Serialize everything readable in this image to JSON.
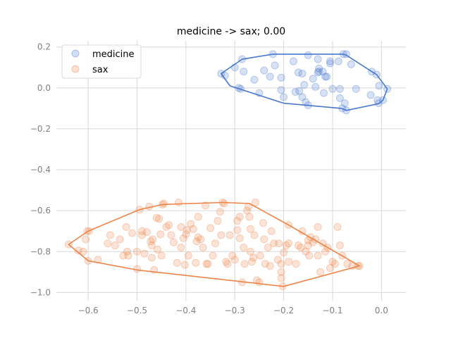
{
  "chart_data": {
    "type": "scatter",
    "title": "medicine -> sax; 0.00",
    "xlabel": "",
    "ylabel": "",
    "xlim": [
      -0.665,
      0.05
    ],
    "ylim": [
      -1.04,
      0.23
    ],
    "xticks": [
      -0.6,
      -0.5,
      -0.4,
      -0.3,
      -0.2,
      -0.1,
      0.0
    ],
    "xtick_labels": [
      "−0.6",
      "−0.5",
      "−0.4",
      "−0.3",
      "−0.2",
      "−0.1",
      "0.0"
    ],
    "yticks": [
      0.2,
      0.0,
      -0.2,
      -0.4,
      -0.6,
      -0.8,
      -1.0
    ],
    "ytick_labels": [
      "0.2",
      "0.0",
      "−0.2",
      "−0.4",
      "−0.6",
      "−0.8",
      "−1.0"
    ],
    "grid": true,
    "legend_position": "top-left",
    "series": [
      {
        "name": "medicine",
        "color": "#4878cf",
        "points": [
          [
            -0.328,
            0.07
          ],
          [
            -0.32,
            0.06
          ],
          [
            -0.3,
            0.1
          ],
          [
            -0.285,
            0.14
          ],
          [
            -0.282,
            0.08
          ],
          [
            -0.292,
            0.0
          ],
          [
            -0.288,
            -0.005
          ],
          [
            -0.26,
            0.04
          ],
          [
            -0.25,
            -0.025
          ],
          [
            -0.24,
            0.085
          ],
          [
            -0.222,
            0.165
          ],
          [
            -0.218,
            0.11
          ],
          [
            -0.228,
            0.055
          ],
          [
            -0.205,
            0.05
          ],
          [
            -0.205,
            -0.01
          ],
          [
            -0.2,
            -0.045
          ],
          [
            -0.18,
            0.13
          ],
          [
            -0.17,
            0.075
          ],
          [
            -0.162,
            0.07
          ],
          [
            -0.158,
            0.015
          ],
          [
            -0.168,
            -0.015
          ],
          [
            -0.162,
            -0.045
          ],
          [
            -0.155,
            -0.07
          ],
          [
            -0.15,
            0.16
          ],
          [
            -0.14,
            0.045
          ],
          [
            -0.135,
            0.005
          ],
          [
            -0.13,
            0.14
          ],
          [
            -0.128,
            0.095
          ],
          [
            -0.13,
            0.075
          ],
          [
            -0.128,
            0.08
          ],
          [
            -0.12,
            0.08
          ],
          [
            -0.115,
            0.055
          ],
          [
            -0.112,
            0.055
          ],
          [
            -0.118,
            -0.025
          ],
          [
            -0.105,
            0.12
          ],
          [
            -0.105,
            0.13
          ],
          [
            -0.1,
            -0.005
          ],
          [
            -0.088,
            0.13
          ],
          [
            -0.078,
            0.165
          ],
          [
            -0.072,
            0.165
          ],
          [
            -0.085,
            -0.05
          ],
          [
            -0.08,
            -0.1
          ],
          [
            -0.075,
            -0.075
          ],
          [
            -0.072,
            -0.11
          ],
          [
            -0.085,
            -0.005
          ],
          [
            -0.062,
            0.115
          ],
          [
            -0.052,
            -0.005
          ],
          [
            -0.022,
            -0.035
          ],
          [
            -0.02,
            0.08
          ],
          [
            -0.01,
            0.065
          ],
          [
            -0.005,
            0.01
          ],
          [
            -0.008,
            -0.06
          ],
          [
            -0.006,
            -0.075
          ],
          [
            0.003,
            -0.06
          ],
          [
            0.012,
            -0.005
          ],
          [
            -0.15,
            -0.085
          ],
          [
            -0.176,
            -0.02
          ]
        ],
        "hull": [
          [
            0.012,
            -0.005
          ],
          [
            0.003,
            -0.06
          ],
          [
            -0.005,
            -0.077
          ],
          [
            -0.072,
            -0.11
          ],
          [
            -0.082,
            -0.1
          ],
          [
            -0.2,
            -0.075
          ],
          [
            -0.31,
            0.01
          ],
          [
            -0.328,
            0.07
          ],
          [
            -0.285,
            0.14
          ],
          [
            -0.222,
            0.165
          ],
          [
            -0.078,
            0.165
          ],
          [
            -0.072,
            0.16
          ],
          [
            -0.02,
            0.08
          ],
          [
            -0.01,
            0.065
          ]
        ]
      },
      {
        "name": "sax",
        "color": "#ee854a",
        "points": [
          [
            -0.64,
            -0.765
          ],
          [
            -0.62,
            -0.795
          ],
          [
            -0.61,
            -0.8
          ],
          [
            -0.602,
            -0.7
          ],
          [
            -0.598,
            -0.7
          ],
          [
            -0.605,
            -0.74
          ],
          [
            -0.6,
            -0.845
          ],
          [
            -0.58,
            -0.84
          ],
          [
            -0.56,
            -0.76
          ],
          [
            -0.555,
            -0.72
          ],
          [
            -0.545,
            -0.77
          ],
          [
            -0.535,
            -0.74
          ],
          [
            -0.528,
            -0.82
          ],
          [
            -0.52,
            -0.8
          ],
          [
            -0.522,
            -0.68
          ],
          [
            -0.518,
            -0.82
          ],
          [
            -0.51,
            -0.71
          ],
          [
            -0.5,
            -0.8
          ],
          [
            -0.5,
            -0.885
          ],
          [
            -0.495,
            -0.595
          ],
          [
            -0.49,
            -0.7
          ],
          [
            -0.49,
            -0.72
          ],
          [
            -0.485,
            -0.81
          ],
          [
            -0.48,
            -0.705
          ],
          [
            -0.475,
            -0.58
          ],
          [
            -0.472,
            -0.75
          ],
          [
            -0.47,
            -0.77
          ],
          [
            -0.47,
            -0.83
          ],
          [
            -0.468,
            -0.74
          ],
          [
            -0.465,
            -0.89
          ],
          [
            -0.46,
            -0.635
          ],
          [
            -0.458,
            -0.79
          ],
          [
            -0.455,
            -0.64
          ],
          [
            -0.452,
            -0.715
          ],
          [
            -0.45,
            -0.82
          ],
          [
            -0.448,
            -0.57
          ],
          [
            -0.445,
            -0.565
          ],
          [
            -0.44,
            -0.68
          ],
          [
            -0.435,
            -0.67
          ],
          [
            -0.43,
            -0.72
          ],
          [
            -0.425,
            -0.755
          ],
          [
            -0.418,
            -0.855
          ],
          [
            -0.415,
            -0.56
          ],
          [
            -0.41,
            -0.68
          ],
          [
            -0.41,
            -0.78
          ],
          [
            -0.405,
            -0.735
          ],
          [
            -0.402,
            -0.865
          ],
          [
            -0.4,
            -0.715
          ],
          [
            -0.398,
            -0.695
          ],
          [
            -0.395,
            -0.82
          ],
          [
            -0.39,
            -0.665
          ],
          [
            -0.385,
            -0.69
          ],
          [
            -0.38,
            -0.855
          ],
          [
            -0.378,
            -0.75
          ],
          [
            -0.375,
            -0.63
          ],
          [
            -0.375,
            -0.73
          ],
          [
            -0.37,
            -0.74
          ],
          [
            -0.365,
            -0.78
          ],
          [
            -0.36,
            -0.575
          ],
          [
            -0.358,
            -0.86
          ],
          [
            -0.355,
            -0.86
          ],
          [
            -0.35,
            -0.685
          ],
          [
            -0.345,
            -0.82
          ],
          [
            -0.34,
            -0.76
          ],
          [
            -0.335,
            -0.65
          ],
          [
            -0.33,
            -0.605
          ],
          [
            -0.328,
            -0.72
          ],
          [
            -0.325,
            -0.56
          ],
          [
            -0.322,
            -0.565
          ],
          [
            -0.318,
            -0.85
          ],
          [
            -0.315,
            -0.86
          ],
          [
            -0.31,
            -0.72
          ],
          [
            -0.305,
            -0.82
          ],
          [
            -0.3,
            -0.84
          ],
          [
            -0.295,
            -0.65
          ],
          [
            -0.295,
            -0.695
          ],
          [
            -0.29,
            -0.63
          ],
          [
            -0.29,
            -0.735
          ],
          [
            -0.285,
            -0.95
          ],
          [
            -0.282,
            -0.78
          ],
          [
            -0.28,
            -0.86
          ],
          [
            -0.275,
            -0.6
          ],
          [
            -0.272,
            -0.58
          ],
          [
            -0.27,
            -0.63
          ],
          [
            -0.268,
            -0.69
          ],
          [
            -0.268,
            -0.8
          ],
          [
            -0.265,
            -0.85
          ],
          [
            -0.262,
            -0.83
          ],
          [
            -0.26,
            -0.72
          ],
          [
            -0.258,
            -0.56
          ],
          [
            -0.255,
            -0.94
          ],
          [
            -0.25,
            -0.95
          ],
          [
            -0.248,
            -0.82
          ],
          [
            -0.242,
            -0.66
          ],
          [
            -0.24,
            -0.74
          ],
          [
            -0.238,
            -0.86
          ],
          [
            -0.232,
            -0.78
          ],
          [
            -0.228,
            -0.87
          ],
          [
            -0.225,
            -0.7
          ],
          [
            -0.22,
            -0.76
          ],
          [
            -0.212,
            -0.84
          ],
          [
            -0.21,
            -0.76
          ],
          [
            -0.205,
            -0.86
          ],
          [
            -0.205,
            -0.9
          ],
          [
            -0.205,
            -0.93
          ],
          [
            -0.202,
            -0.97
          ],
          [
            -0.2,
            -0.805
          ],
          [
            -0.195,
            -0.77
          ],
          [
            -0.19,
            -0.85
          ],
          [
            -0.19,
            -0.76
          ],
          [
            -0.19,
            -0.67
          ],
          [
            -0.175,
            -0.86
          ],
          [
            -0.17,
            -0.77
          ],
          [
            -0.165,
            -0.78
          ],
          [
            -0.162,
            -0.7
          ],
          [
            -0.155,
            -0.8
          ],
          [
            -0.15,
            -0.77
          ],
          [
            -0.15,
            -0.745
          ],
          [
            -0.148,
            -0.82
          ],
          [
            -0.145,
            -0.73
          ],
          [
            -0.14,
            -0.755
          ],
          [
            -0.135,
            -0.74
          ],
          [
            -0.13,
            -0.68
          ],
          [
            -0.13,
            -0.82
          ],
          [
            -0.125,
            -0.9
          ],
          [
            -0.12,
            -0.76
          ],
          [
            -0.115,
            -0.8
          ],
          [
            -0.11,
            -0.78
          ],
          [
            -0.105,
            -0.88
          ],
          [
            -0.1,
            -0.85
          ],
          [
            -0.095,
            -0.86
          ],
          [
            -0.09,
            -0.68
          ],
          [
            -0.085,
            -0.77
          ],
          [
            -0.08,
            -0.82
          ],
          [
            -0.07,
            -0.86
          ],
          [
            -0.06,
            -0.87
          ],
          [
            -0.048,
            -0.87
          ],
          [
            -0.045,
            -0.87
          ]
        ],
        "hull": [
          [
            -0.045,
            -0.87
          ],
          [
            -0.2,
            -0.97
          ],
          [
            -0.5,
            -0.89
          ],
          [
            -0.6,
            -0.845
          ],
          [
            -0.64,
            -0.765
          ],
          [
            -0.6,
            -0.7
          ],
          [
            -0.495,
            -0.595
          ],
          [
            -0.448,
            -0.57
          ],
          [
            -0.325,
            -0.56
          ],
          [
            -0.27,
            -0.565
          ],
          [
            -0.19,
            -0.67
          ]
        ]
      }
    ]
  }
}
